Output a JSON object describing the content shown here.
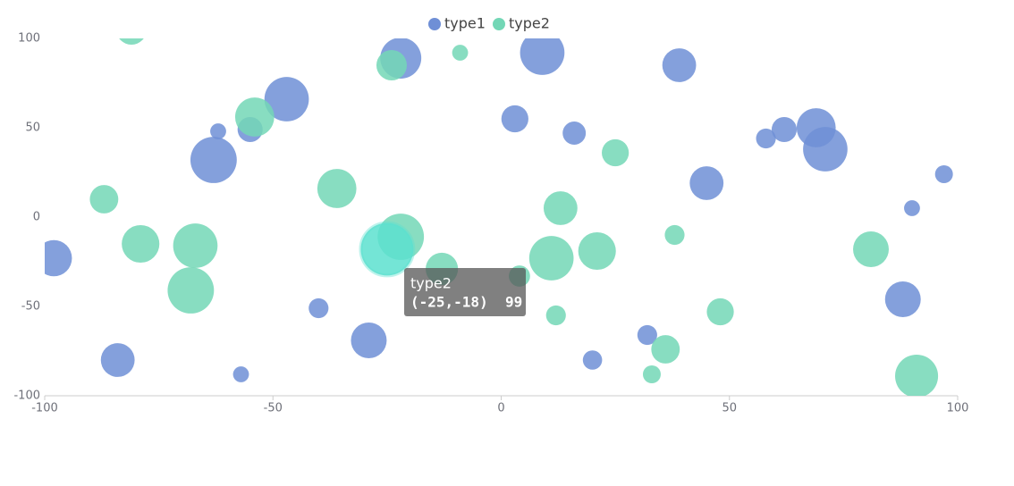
{
  "chart_data": {
    "type": "scatter",
    "xlim": [
      -100,
      100
    ],
    "xticks": [
      -100,
      -50,
      0,
      50,
      100
    ],
    "ylim": [
      -100,
      100
    ],
    "yticks": [
      -100,
      -50,
      0,
      50,
      100
    ],
    "series": [
      {
        "name": "type1",
        "color": "#6f8fd6",
        "x": [
          -98,
          -84,
          -63,
          -62,
          -55,
          -47,
          -57,
          -40,
          -29,
          -22,
          3,
          9,
          16,
          20,
          32,
          39,
          45,
          58,
          62,
          69,
          71,
          90,
          88,
          97
        ],
        "values": [
          -23,
          -80,
          32,
          48,
          49,
          66,
          -88,
          -51,
          -69,
          89,
          55,
          92,
          47,
          -80,
          -66,
          85,
          19,
          44,
          49,
          50,
          38,
          5,
          -46,
          24
        ],
        "sizes": [
          75,
          70,
          96,
          33,
          52,
          92,
          33,
          41,
          74,
          85,
          56,
          92,
          48,
          40,
          41,
          70,
          70,
          41,
          52,
          81,
          92,
          33,
          74,
          37
        ]
      },
      {
        "name": "type2",
        "color": "#73d7b6",
        "x": [
          -81,
          -87,
          -79,
          -67,
          -68,
          -54,
          -36,
          -24,
          -9,
          -22,
          -25,
          -13,
          4,
          13,
          11,
          21,
          12,
          25,
          38,
          36,
          33,
          48,
          81,
          91
        ],
        "values": [
          105,
          10,
          -15,
          -16,
          -41,
          56,
          16,
          85,
          92,
          -11,
          -18,
          -29,
          -33,
          5,
          -23,
          -19,
          -55,
          36,
          -10,
          -74,
          -88,
          -53,
          -18,
          -89
        ],
        "sizes": [
          63,
          59,
          78,
          92,
          96,
          81,
          81,
          63,
          33,
          96,
          99,
          67,
          44,
          70,
          92,
          78,
          41,
          56,
          41,
          59,
          37,
          56,
          74,
          89
        ]
      }
    ],
    "emphasis": {
      "series": 1,
      "index": 10,
      "color": "#5ce1cf"
    },
    "tooltip": {
      "text": "(-25,-18)  99"
    }
  }
}
